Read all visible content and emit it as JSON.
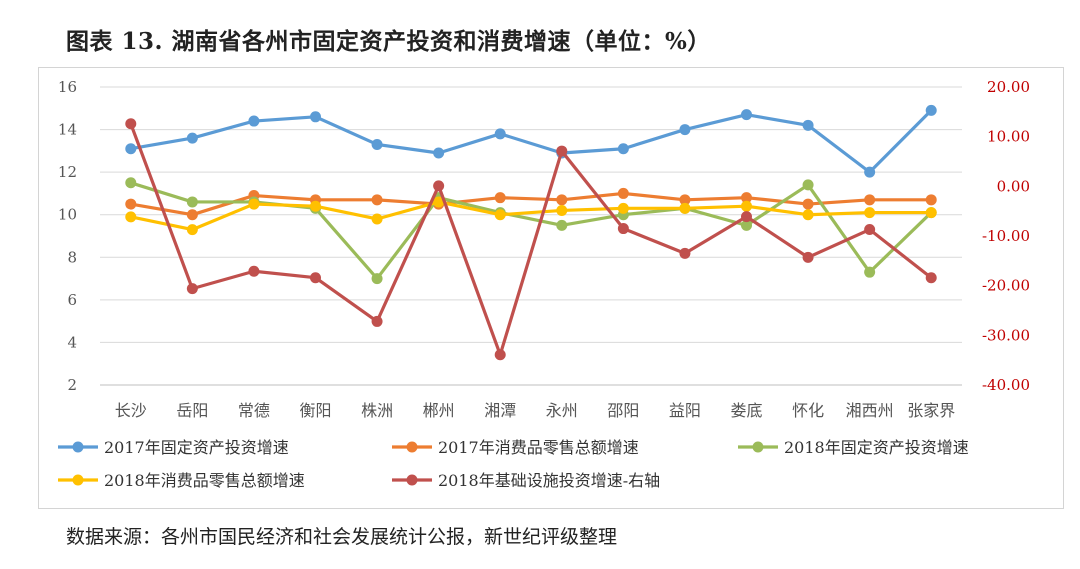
{
  "title": "图表 13.   湖南省各州市固定资产投资和消费增速（单位：%）",
  "source": "数据来源：各州市国民经济和社会发展统计公报，新世纪评级整理",
  "chart_data": {
    "type": "line",
    "categories": [
      "长沙",
      "岳阳",
      "常德",
      "衡阳",
      "株洲",
      "郴州",
      "湘潭",
      "永州",
      "邵阳",
      "益阳",
      "娄底",
      "怀化",
      "湘西州",
      "张家界"
    ],
    "y_left": {
      "min": 2,
      "max": 16,
      "step": 2,
      "ticks": [
        "2",
        "4",
        "6",
        "8",
        "10",
        "12",
        "14",
        "16"
      ]
    },
    "y_right": {
      "min": -40,
      "max": 20,
      "step": 10,
      "ticks": [
        "-40.00",
        "-30.00",
        "-20.00",
        "-10.00",
        "0.00",
        "10.00",
        "20.00"
      ]
    },
    "grid": true,
    "legend_position": "bottom",
    "series": [
      {
        "name": "2017年固定资产投资增速",
        "axis": "left",
        "color": "#5b9bd5",
        "values": [
          13.1,
          13.6,
          14.4,
          14.6,
          13.3,
          12.9,
          13.8,
          12.9,
          13.1,
          14.0,
          14.7,
          14.2,
          12.0,
          14.9
        ]
      },
      {
        "name": "2017年消费品零售总额增速",
        "axis": "left",
        "color": "#ed7d31",
        "values": [
          10.5,
          10.0,
          10.9,
          10.7,
          10.7,
          10.5,
          10.8,
          10.7,
          11.0,
          10.7,
          10.8,
          10.5,
          10.7,
          10.7
        ]
      },
      {
        "name": "2018年固定资产投资增速",
        "axis": "left",
        "color": "#9bbb59",
        "values": [
          11.5,
          10.6,
          10.6,
          10.3,
          7.0,
          10.8,
          10.1,
          9.5,
          10.0,
          10.3,
          9.5,
          11.4,
          7.3,
          10.1
        ]
      },
      {
        "name": "2018年消费品零售总额增速",
        "axis": "left",
        "color": "#ffc000",
        "values": [
          9.9,
          9.3,
          10.5,
          10.4,
          9.8,
          10.6,
          10.0,
          10.2,
          10.3,
          10.3,
          10.4,
          10.0,
          10.1,
          10.1
        ]
      },
      {
        "name": "2018年基础设施投资增速-右轴",
        "axis": "right",
        "color": "#c0504d",
        "values": [
          12.6,
          -20.6,
          -17.1,
          -18.4,
          -27.2,
          0.1,
          -33.9,
          7.1,
          -8.5,
          -13.5,
          -6.1,
          -14.3,
          -8.7,
          -18.4
        ]
      }
    ]
  }
}
